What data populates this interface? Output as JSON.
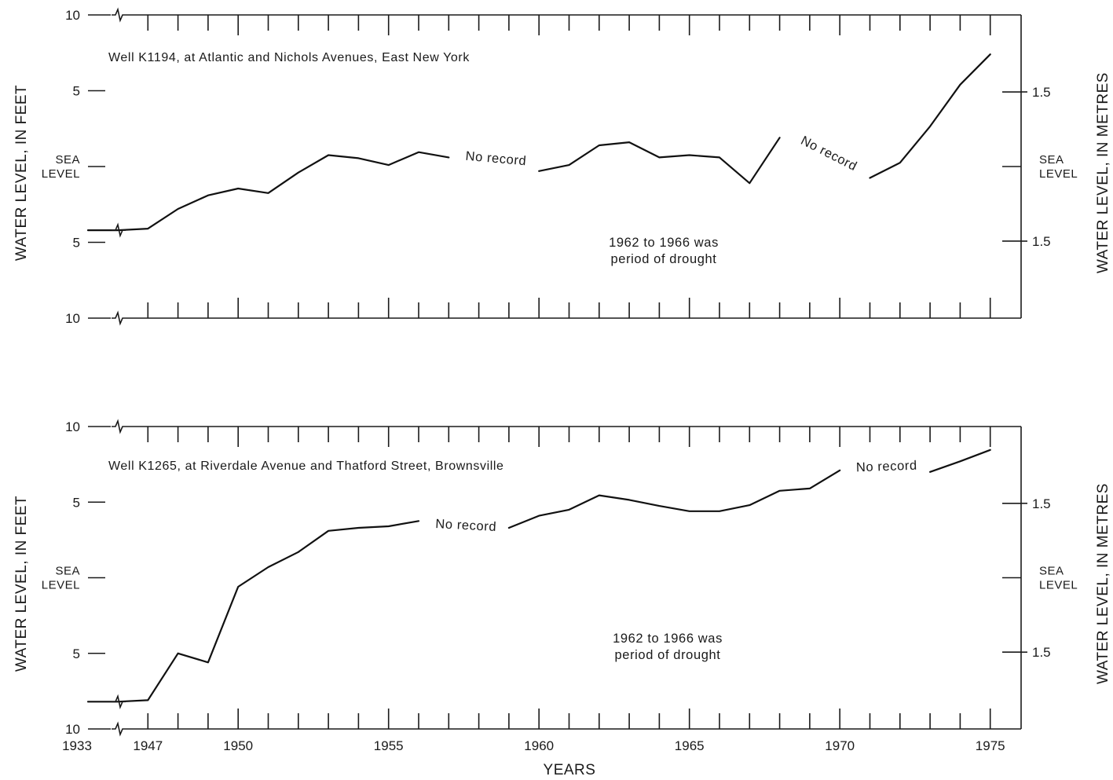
{
  "chart_data": [
    {
      "type": "line",
      "title": "Well K1194, at Atlantic and Nichols Avenues, East New York",
      "ylabel_left": "WATER LEVEL, IN FEET",
      "ylabel_right": "WATER LEVEL, IN METRES",
      "ylim": [
        -10,
        10
      ],
      "yticks_left": [
        {
          "value": 10,
          "label": "10"
        },
        {
          "value": 5,
          "label": "5"
        },
        {
          "value": 0,
          "label": "SEA\nLEVEL"
        },
        {
          "value": -5,
          "label": "5"
        },
        {
          "value": -10,
          "label": "10"
        }
      ],
      "yticks_right": [
        {
          "value": 1.5,
          "label": "1.5"
        },
        {
          "value": 0,
          "label": "SEA\nLEVEL"
        },
        {
          "value": -1.5,
          "label": "1.5"
        }
      ],
      "annotation": "1962 to 1966 was\nperiod of drought",
      "gap_labels": [
        "No record",
        "No record"
      ],
      "series": [
        {
          "segments": [
            [
              [
                1933,
                -4.2
              ],
              [
                1946,
                -4.2
              ],
              [
                1947,
                -4.1
              ],
              [
                1948,
                -2.8
              ],
              [
                1949,
                -1.9
              ],
              [
                1950,
                -1.45
              ],
              [
                1951,
                -1.75
              ],
              [
                1952,
                -0.4
              ],
              [
                1953,
                0.75
              ],
              [
                1954,
                0.55
              ],
              [
                1955,
                0.1
              ],
              [
                1956,
                0.95
              ],
              [
                1957,
                0.6
              ]
            ],
            [
              [
                1960,
                -0.3
              ],
              [
                1961,
                0.1
              ],
              [
                1962,
                1.4
              ],
              [
                1963,
                1.6
              ],
              [
                1964,
                0.6
              ],
              [
                1965,
                0.75
              ],
              [
                1966,
                0.6
              ],
              [
                1967,
                -1.1
              ],
              [
                1968,
                1.9
              ]
            ],
            [
              [
                1971,
                -0.75
              ],
              [
                1972,
                0.25
              ],
              [
                1973,
                2.65
              ],
              [
                1974,
                5.4
              ],
              [
                1975,
                7.4
              ]
            ]
          ]
        }
      ]
    },
    {
      "type": "line",
      "title": "Well K1265, at Riverdale Avenue and Thatford Street, Brownsville",
      "ylabel_left": "WATER LEVEL, IN FEET",
      "ylabel_right": "WATER LEVEL, IN METRES",
      "xlabel": "YEARS",
      "ylim": [
        -10,
        10
      ],
      "x_tick_labels": [
        "1933",
        "1947",
        "1950",
        "1955",
        "1960",
        "1965",
        "1970",
        "1975"
      ],
      "yticks_left": [
        {
          "value": 10,
          "label": "10"
        },
        {
          "value": 5,
          "label": "5"
        },
        {
          "value": 0,
          "label": "SEA\nLEVEL"
        },
        {
          "value": -5,
          "label": "5"
        },
        {
          "value": -10,
          "label": "10"
        }
      ],
      "yticks_right": [
        {
          "value": 1.5,
          "label": "1.5"
        },
        {
          "value": 0,
          "label": "SEA\nLEVEL"
        },
        {
          "value": -1.5,
          "label": "1.5"
        }
      ],
      "annotation": "1962 to 1966 was\nperiod of drought",
      "gap_labels": [
        "No record",
        "No record"
      ],
      "series": [
        {
          "segments": [
            [
              [
                1933,
                -8.2
              ],
              [
                1946,
                -8.2
              ],
              [
                1947,
                -8.1
              ],
              [
                1948,
                -5.0
              ],
              [
                1949,
                -5.6
              ],
              [
                1950,
                -0.6
              ],
              [
                1951,
                0.7
              ],
              [
                1952,
                1.7
              ],
              [
                1953,
                3.1
              ],
              [
                1954,
                3.3
              ],
              [
                1955,
                3.4
              ],
              [
                1956,
                3.75
              ]
            ],
            [
              [
                1959,
                3.3
              ],
              [
                1960,
                4.1
              ],
              [
                1961,
                4.5
              ],
              [
                1962,
                5.45
              ],
              [
                1963,
                5.15
              ],
              [
                1964,
                4.75
              ],
              [
                1965,
                4.4
              ],
              [
                1966,
                4.4
              ],
              [
                1967,
                4.8
              ],
              [
                1968,
                5.75
              ],
              [
                1969,
                5.9
              ],
              [
                1970,
                7.1
              ]
            ],
            [
              [
                1973,
                7.0
              ],
              [
                1974,
                7.7
              ],
              [
                1975,
                8.45
              ]
            ]
          ]
        }
      ]
    }
  ]
}
